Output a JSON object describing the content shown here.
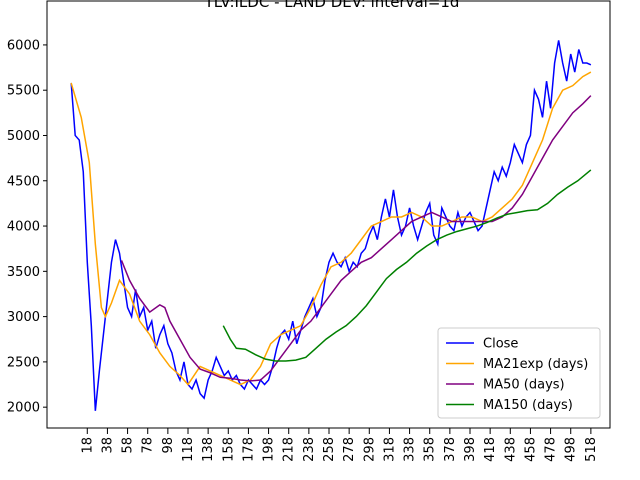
{
  "chart_data": {
    "type": "line",
    "title": "TLV:ILDC - LAND DEV: interval=1d",
    "xlim": [
      -22,
      537
    ],
    "ylim": [
      1770,
      6485
    ],
    "xticks": [
      18,
      38,
      58,
      78,
      98,
      118,
      138,
      158,
      178,
      198,
      218,
      238,
      258,
      278,
      298,
      318,
      338,
      358,
      378,
      398,
      418,
      438,
      458,
      478,
      498,
      518
    ],
    "yticks": [
      2000,
      2500,
      3000,
      3500,
      4000,
      4500,
      5000,
      5500,
      6000
    ],
    "legend": "lower right",
    "series": [
      {
        "name": "Close",
        "color": "#0000ff",
        "x": [
          2,
          6,
          10,
          14,
          18,
          22,
          26,
          30,
          34,
          38,
          42,
          46,
          50,
          54,
          58,
          62,
          66,
          70,
          74,
          78,
          82,
          86,
          90,
          94,
          98,
          102,
          106,
          110,
          114,
          118,
          122,
          126,
          130,
          134,
          138,
          142,
          146,
          150,
          154,
          158,
          162,
          166,
          170,
          174,
          178,
          182,
          186,
          190,
          194,
          198,
          202,
          206,
          210,
          214,
          218,
          222,
          226,
          230,
          234,
          238,
          242,
          246,
          250,
          254,
          258,
          262,
          266,
          270,
          274,
          278,
          282,
          286,
          290,
          294,
          298,
          302,
          306,
          310,
          314,
          318,
          322,
          326,
          330,
          334,
          338,
          342,
          346,
          350,
          354,
          358,
          362,
          366,
          370,
          374,
          378,
          382,
          386,
          390,
          394,
          398,
          402,
          406,
          410,
          414,
          418,
          422,
          426,
          430,
          434,
          438,
          442,
          446,
          450,
          454,
          458,
          462,
          466,
          470,
          474,
          478,
          482,
          486,
          490,
          494,
          498,
          502,
          506,
          510,
          514,
          518
        ],
        "values": [
          5580,
          5000,
          4950,
          4600,
          3600,
          2900,
          1960,
          2400,
          2800,
          3200,
          3600,
          3850,
          3700,
          3400,
          3100,
          3000,
          3300,
          3000,
          3100,
          2850,
          2950,
          2650,
          2800,
          2900,
          2700,
          2600,
          2400,
          2300,
          2500,
          2250,
          2200,
          2300,
          2150,
          2100,
          2300,
          2400,
          2550,
          2450,
          2350,
          2400,
          2300,
          2350,
          2250,
          2200,
          2300,
          2250,
          2200,
          2300,
          2250,
          2300,
          2450,
          2650,
          2800,
          2850,
          2750,
          2950,
          2700,
          2850,
          3000,
          3100,
          3200,
          3000,
          3100,
          3400,
          3600,
          3700,
          3600,
          3550,
          3650,
          3500,
          3600,
          3550,
          3700,
          3750,
          3900,
          4000,
          3850,
          4100,
          4300,
          4100,
          4400,
          4100,
          3900,
          4000,
          4200,
          4000,
          3850,
          4000,
          4150,
          4250,
          3900,
          3800,
          4200,
          4100,
          4000,
          3950,
          4150,
          4000,
          4100,
          4150,
          4050,
          3950,
          4000,
          4200,
          4400,
          4600,
          4500,
          4650,
          4550,
          4700,
          4900,
          4800,
          4700,
          4900,
          5000,
          5500,
          5400,
          5200,
          5600,
          5300,
          5800,
          6050,
          5800,
          5600,
          5900,
          5700,
          5950,
          5800,
          5800,
          5780
        ]
      },
      {
        "name": "MA21exp (days)",
        "color": "#ffa500",
        "x": [
          2,
          12,
          20,
          26,
          32,
          36,
          42,
          50,
          60,
          70,
          80,
          90,
          100,
          110,
          118,
          124,
          130,
          140,
          150,
          160,
          170,
          180,
          190,
          200,
          210,
          220,
          230,
          240,
          250,
          260,
          270,
          280,
          290,
          300,
          310,
          320,
          330,
          340,
          350,
          360,
          370,
          380,
          390,
          400,
          410,
          420,
          430,
          440,
          450,
          460,
          470,
          480,
          490,
          500,
          510,
          518
        ],
        "values": [
          5580,
          5200,
          4700,
          3800,
          3100,
          3000,
          3150,
          3400,
          3250,
          2950,
          2800,
          2600,
          2450,
          2350,
          2250,
          2350,
          2450,
          2400,
          2350,
          2300,
          2250,
          2300,
          2450,
          2700,
          2800,
          2850,
          2900,
          3100,
          3350,
          3550,
          3600,
          3700,
          3850,
          4000,
          4050,
          4100,
          4100,
          4150,
          4100,
          4000,
          4000,
          4050,
          4100,
          4100,
          4050,
          4100,
          4200,
          4300,
          4450,
          4700,
          4950,
          5300,
          5500,
          5550,
          5650,
          5700
        ]
      },
      {
        "name": "MA50 (days)",
        "color": "#800080",
        "x": [
          52,
          60,
          70,
          80,
          90,
          95,
          100,
          110,
          120,
          130,
          140,
          150,
          160,
          170,
          180,
          190,
          200,
          210,
          220,
          230,
          240,
          250,
          260,
          270,
          280,
          290,
          300,
          310,
          320,
          330,
          340,
          350,
          360,
          370,
          380,
          390,
          400,
          410,
          420,
          430,
          440,
          450,
          460,
          470,
          480,
          490,
          500,
          510,
          518
        ],
        "values": [
          3620,
          3400,
          3200,
          3050,
          3130,
          3100,
          2950,
          2750,
          2550,
          2420,
          2380,
          2330,
          2320,
          2300,
          2290,
          2300,
          2400,
          2550,
          2700,
          2850,
          2950,
          3100,
          3250,
          3400,
          3500,
          3600,
          3650,
          3750,
          3850,
          3950,
          4050,
          4100,
          4150,
          4100,
          4050,
          4050,
          4050,
          4050,
          4050,
          4100,
          4200,
          4350,
          4550,
          4750,
          4950,
          5100,
          5250,
          5350,
          5440
        ]
      },
      {
        "name": "MA150 (days)",
        "color": "#008000",
        "x": [
          153,
          160,
          166,
          175,
          185,
          195,
          205,
          215,
          225,
          235,
          245,
          255,
          265,
          275,
          285,
          295,
          305,
          315,
          325,
          335,
          345,
          355,
          365,
          375,
          385,
          395,
          405,
          415,
          425,
          435,
          445,
          455,
          465,
          475,
          485,
          495,
          505,
          518
        ],
        "values": [
          2900,
          2750,
          2650,
          2640,
          2580,
          2530,
          2510,
          2510,
          2520,
          2550,
          2650,
          2750,
          2830,
          2900,
          3000,
          3120,
          3270,
          3420,
          3520,
          3600,
          3700,
          3780,
          3850,
          3900,
          3940,
          3970,
          4000,
          4040,
          4090,
          4130,
          4150,
          4170,
          4180,
          4250,
          4350,
          4430,
          4500,
          4620
        ]
      }
    ]
  }
}
